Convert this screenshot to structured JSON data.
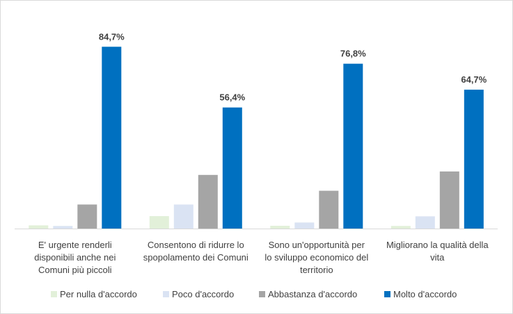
{
  "chart_data": {
    "type": "bar",
    "categories": [
      [
        "E' urgente renderli",
        "disponibili anche nei",
        "Comuni più piccoli"
      ],
      [
        "Consentono di ridurre lo",
        "spopolamento dei Comuni"
      ],
      [
        "Sono un'opportunità per",
        "lo sviluppo economico del",
        "territorio"
      ],
      [
        "Migliorano la qualità della",
        "vita"
      ]
    ],
    "series": [
      {
        "name": "Per nulla d'accordo",
        "color": "#e2f0d9",
        "values": [
          1.5,
          5.8,
          1.3,
          1.2
        ]
      },
      {
        "name": "Poco d'accordo",
        "color": "#dae3f3",
        "values": [
          1.2,
          11.2,
          2.8,
          5.7
        ]
      },
      {
        "name": "Abbastanza d'accordo",
        "color": "#a5a5a5",
        "values": [
          11.2,
          25.0,
          17.6,
          26.6
        ]
      },
      {
        "name": "Molto d'accordo",
        "color": "#0070c0",
        "values": [
          84.7,
          56.4,
          76.8,
          64.7
        ]
      }
    ],
    "data_labels": [
      "84,7%",
      "56,4%",
      "76,8%",
      "64,7%"
    ],
    "ylim": [
      0,
      100
    ],
    "legend_position": "bottom",
    "grid": false
  }
}
